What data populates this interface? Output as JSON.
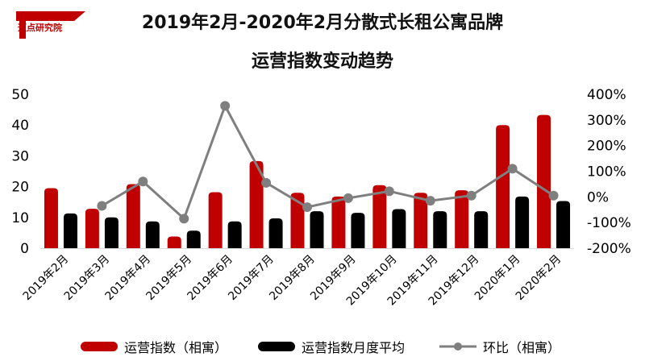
{
  "logo": {
    "text": "迈点研究院"
  },
  "chart_data": {
    "type": "bar",
    "title_lines": [
      "2019年2月-2020年2月分散式长租公寓品牌",
      "运营指数变动趋势"
    ],
    "categories": [
      "2019年2月",
      "2019年3月",
      "2019年4月",
      "2019年5月",
      "2019年6月",
      "2019年7月",
      "2019年8月",
      "2019年9月",
      "2019年10月",
      "2019年11月",
      "2019年12月",
      "2020年1月",
      "2020年2月"
    ],
    "series": [
      {
        "name": "运营指数（相寓）",
        "type": "bar",
        "axis": "left",
        "color": "#c00000",
        "values": [
          19.5,
          12.8,
          20.8,
          3.8,
          18.2,
          28.3,
          18.0,
          16.8,
          20.5,
          18.0,
          18.8,
          40.0,
          43.3
        ]
      },
      {
        "name": "运营指数月度平均",
        "type": "bar",
        "axis": "left",
        "color": "#000000",
        "values": [
          11.3,
          10.0,
          8.7,
          5.7,
          8.7,
          9.7,
          12.0,
          11.5,
          12.7,
          12.0,
          12.0,
          16.8,
          15.3
        ]
      },
      {
        "name": "环比（相寓）",
        "type": "line",
        "axis": "right",
        "color": "#7f7f7f",
        "values": [
          null,
          -35,
          60,
          -85,
          355,
          55,
          -40,
          -5,
          22,
          -15,
          5,
          110,
          5
        ]
      }
    ],
    "y_left": {
      "min": 0,
      "max": 50,
      "ticks": [
        0,
        10,
        20,
        30,
        40,
        50
      ]
    },
    "y_right": {
      "min": -200,
      "max": 400,
      "ticks": [
        -200,
        -100,
        0,
        100,
        200,
        300,
        400
      ],
      "unit": "%"
    },
    "legend_position": "bottom",
    "grid": false
  }
}
